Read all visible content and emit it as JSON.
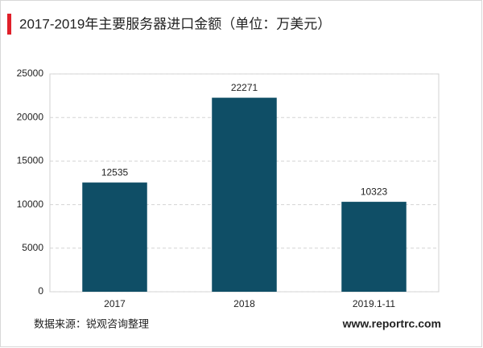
{
  "chart_data": {
    "type": "bar",
    "title": "2017-2019年主要服务器进口金额（单位：万美元）",
    "categories": [
      "2017",
      "2018",
      "2019.1-11"
    ],
    "values": [
      12535,
      22271,
      10323
    ],
    "color": "#0f4e66",
    "ylim": [
      0,
      25000
    ],
    "yticks": [
      0,
      5000,
      10000,
      15000,
      20000,
      25000
    ],
    "grid": true,
    "source": "数据来源：锐观咨询整理",
    "website": "www.reportrc.com"
  }
}
